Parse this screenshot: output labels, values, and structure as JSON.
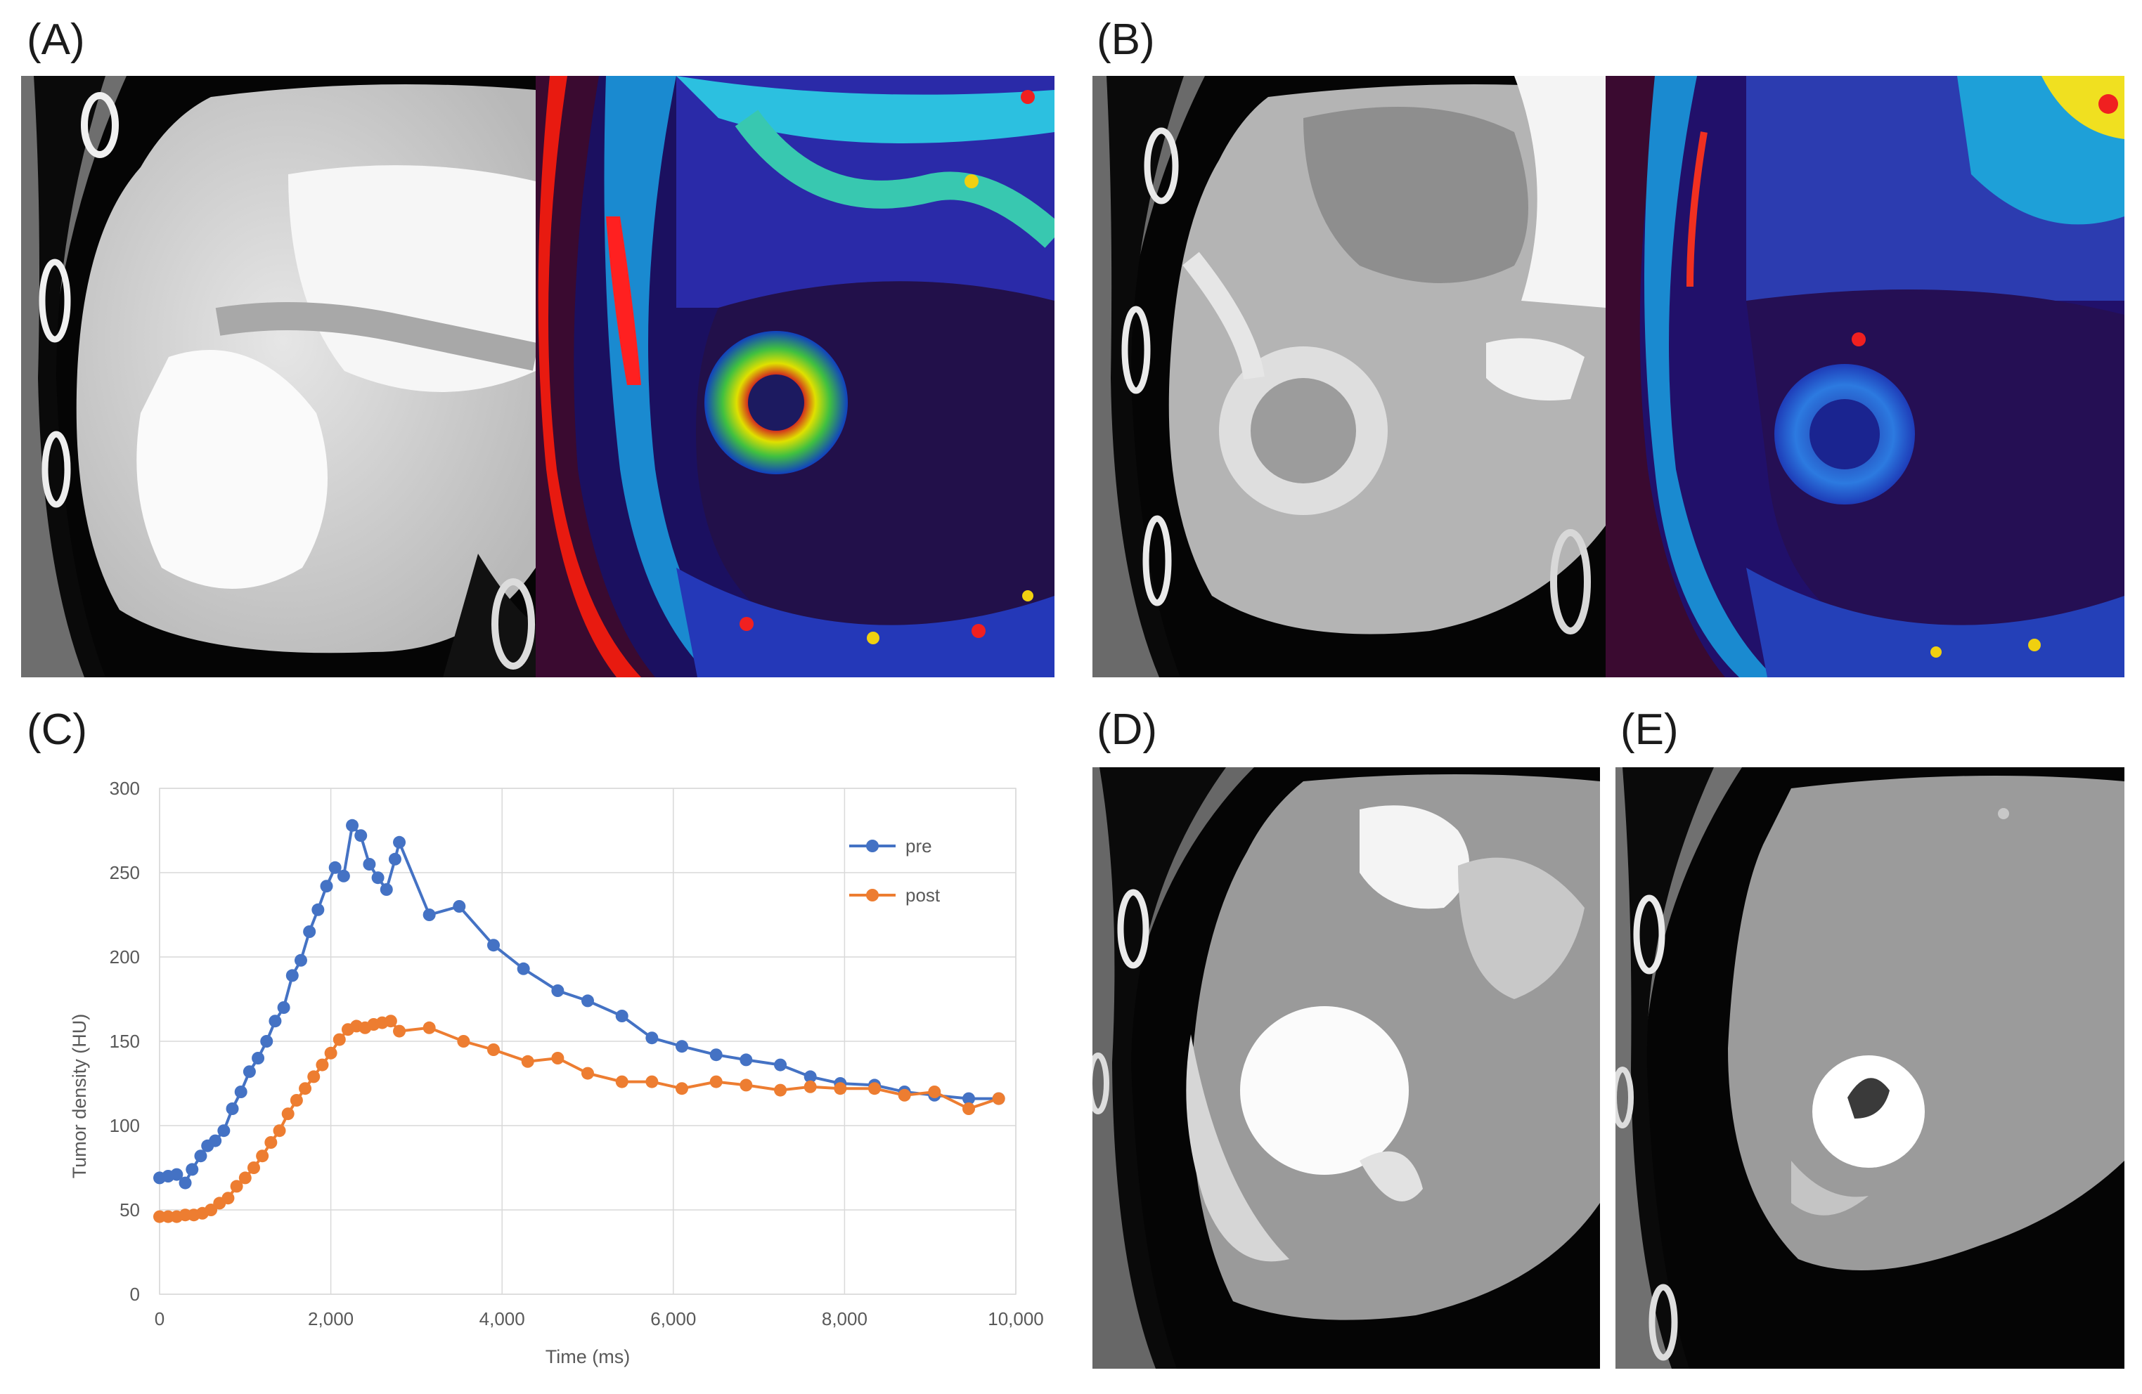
{
  "panels": {
    "A": {
      "label": "(A)"
    },
    "B": {
      "label": "(B)"
    },
    "C": {
      "label": "(C)"
    },
    "D": {
      "label": "(D)"
    },
    "E": {
      "label": "(E)"
    }
  },
  "chart_data": {
    "type": "line",
    "title": "",
    "xlabel": "Time (ms)",
    "ylabel": "Tumor density (HU)",
    "xlim": [
      0,
      10000
    ],
    "ylim": [
      0,
      300
    ],
    "xticks": [
      0,
      2000,
      4000,
      6000,
      8000,
      10000
    ],
    "xtick_labels": [
      "0",
      "2,000",
      "4,000",
      "6,000",
      "8,000",
      "10,000"
    ],
    "yticks": [
      0,
      50,
      100,
      150,
      200,
      250,
      300
    ],
    "ytick_labels": [
      "0",
      "50",
      "100",
      "150",
      "200",
      "250",
      "300"
    ],
    "grid": true,
    "legend": "right, inside plot, upper",
    "series": [
      {
        "name": "pre",
        "color": "#4472c4",
        "x": [
          0,
          100,
          200,
          300,
          380,
          480,
          560,
          650,
          750,
          850,
          950,
          1050,
          1150,
          1250,
          1350,
          1450,
          1550,
          1650,
          1750,
          1850,
          1950,
          2050,
          2150,
          2250,
          2350,
          2450,
          2550,
          2650,
          2750,
          2800,
          3150,
          3500,
          3900,
          4250,
          4650,
          5000,
          5400,
          5750,
          6100,
          6500,
          6850,
          7250,
          7600,
          7950,
          8350,
          8700,
          9050,
          9450,
          9800
        ],
        "y": [
          69,
          70,
          71,
          66,
          74,
          82,
          88,
          91,
          97,
          110,
          120,
          132,
          140,
          150,
          162,
          170,
          189,
          198,
          215,
          228,
          242,
          253,
          248,
          278,
          272,
          255,
          247,
          240,
          258,
          268,
          225,
          230,
          207,
          193,
          180,
          174,
          165,
          152,
          147,
          142,
          139,
          136,
          129,
          125,
          124,
          120,
          118,
          116,
          116
        ]
      },
      {
        "name": "post",
        "color": "#ed7d31",
        "x": [
          0,
          100,
          200,
          300,
          400,
          500,
          600,
          700,
          800,
          900,
          1000,
          1100,
          1200,
          1300,
          1400,
          1500,
          1600,
          1700,
          1800,
          1900,
          2000,
          2100,
          2200,
          2300,
          2400,
          2500,
          2600,
          2700,
          2800,
          3150,
          3550,
          3900,
          4300,
          4650,
          5000,
          5400,
          5750,
          6100,
          6500,
          6850,
          7250,
          7600,
          7950,
          8350,
          8700,
          9050,
          9450,
          9800
        ],
        "y": [
          46,
          46,
          46,
          47,
          47,
          48,
          50,
          54,
          57,
          64,
          69,
          75,
          82,
          90,
          97,
          107,
          115,
          122,
          129,
          136,
          143,
          151,
          157,
          159,
          158,
          160,
          161,
          162,
          156,
          158,
          150,
          145,
          138,
          140,
          131,
          126,
          126,
          122,
          126,
          124,
          121,
          123,
          122,
          122,
          118,
          120,
          110,
          116
        ]
      }
    ]
  }
}
